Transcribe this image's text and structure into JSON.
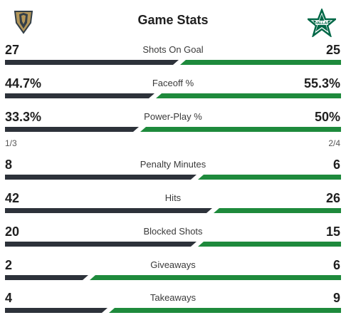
{
  "header": {
    "title": "Game Stats",
    "home_logo": "vegas-golden-knights-logo",
    "away_logo": "dallas-stars-logo"
  },
  "colors": {
    "home": "#2d323a",
    "away": "#1e8a3c"
  },
  "stats": [
    {
      "label": "Shots On Goal",
      "home": "27",
      "away": "25",
      "home_share": 0.519
    },
    {
      "label": "Faceoff %",
      "home": "44.7%",
      "away": "55.3%",
      "home_share": 0.447
    },
    {
      "label": "Power-Play %",
      "home": "33.3%",
      "away": "50%",
      "home_share": 0.4
    },
    {
      "label": "Penalty Minutes",
      "home": "8",
      "away": "6",
      "home_share": 0.571
    },
    {
      "label": "Hits",
      "home": "42",
      "away": "26",
      "home_share": 0.618
    },
    {
      "label": "Blocked Shots",
      "home": "20",
      "away": "15",
      "home_share": 0.571
    },
    {
      "label": "Giveaways",
      "home": "2",
      "away": "6",
      "home_share": 0.25
    },
    {
      "label": "Takeaways",
      "home": "4",
      "away": "9",
      "home_share": 0.308
    }
  ],
  "powerplay_detail": {
    "home": "1/3",
    "away": "2/4"
  }
}
